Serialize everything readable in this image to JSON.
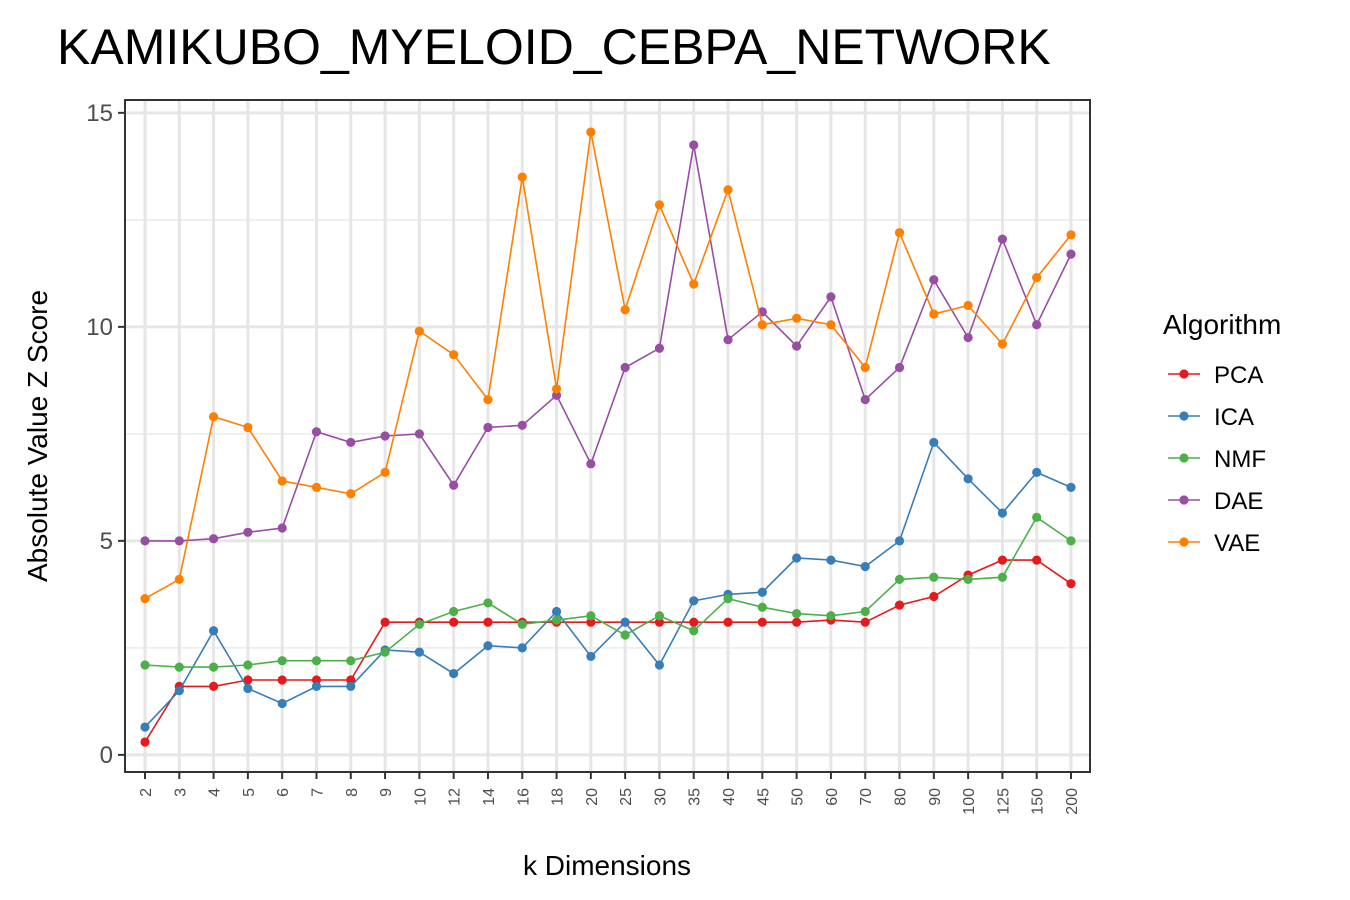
{
  "chart_data": {
    "type": "line",
    "title": "KAMIKUBO_MYELOID_CEBPA_NETWORK",
    "xlabel": "k Dimensions",
    "ylabel": "Absolute Value Z Score",
    "categories": [
      "2",
      "3",
      "4",
      "5",
      "6",
      "7",
      "8",
      "9",
      "10",
      "12",
      "14",
      "16",
      "18",
      "20",
      "25",
      "30",
      "35",
      "40",
      "45",
      "50",
      "60",
      "70",
      "80",
      "90",
      "100",
      "125",
      "150",
      "200"
    ],
    "ylim": [
      -0.4,
      15.3
    ],
    "yticks": [
      0,
      5,
      10,
      15
    ],
    "grid": true,
    "legend": {
      "title": "Algorithm",
      "position": "right"
    },
    "series": [
      {
        "name": "PCA",
        "color": "#e41a1c",
        "values": [
          0.3,
          1.6,
          1.6,
          1.75,
          1.75,
          1.75,
          1.75,
          3.1,
          3.1,
          3.1,
          3.1,
          3.1,
          3.1,
          3.1,
          3.1,
          3.1,
          3.1,
          3.1,
          3.1,
          3.1,
          3.15,
          3.1,
          3.5,
          3.7,
          4.2,
          4.55,
          4.55,
          4.0
        ]
      },
      {
        "name": "ICA",
        "color": "#377eb8",
        "values": [
          0.65,
          1.5,
          2.9,
          1.55,
          1.2,
          1.6,
          1.6,
          2.45,
          2.4,
          1.9,
          2.55,
          2.5,
          3.35,
          2.3,
          3.1,
          2.1,
          3.6,
          3.75,
          3.8,
          4.6,
          4.55,
          4.4,
          5.0,
          7.3,
          6.45,
          5.65,
          6.6,
          6.25
        ]
      },
      {
        "name": "NMF",
        "color": "#4daf4a",
        "values": [
          2.1,
          2.05,
          2.05,
          2.1,
          2.2,
          2.2,
          2.2,
          2.4,
          3.05,
          3.35,
          3.55,
          3.05,
          3.15,
          3.25,
          2.8,
          3.25,
          2.9,
          3.65,
          3.45,
          3.3,
          3.25,
          3.35,
          4.1,
          4.15,
          4.1,
          4.15,
          5.55,
          5.0
        ]
      },
      {
        "name": "DAE",
        "color": "#984ea3",
        "values": [
          5.0,
          5.0,
          5.05,
          5.2,
          5.3,
          7.55,
          7.3,
          7.45,
          7.5,
          6.3,
          7.65,
          7.7,
          8.4,
          6.8,
          9.05,
          9.5,
          14.25,
          9.7,
          10.35,
          9.55,
          10.7,
          8.3,
          9.05,
          11.1,
          9.75,
          12.05,
          10.05,
          11.7
        ]
      },
      {
        "name": "VAE",
        "color": "#ff7f00",
        "values": [
          3.65,
          4.1,
          7.9,
          7.65,
          6.4,
          6.25,
          6.1,
          6.6,
          9.9,
          9.35,
          8.3,
          13.5,
          8.55,
          14.55,
          10.4,
          12.85,
          11.0,
          13.2,
          10.05,
          10.2,
          10.05,
          9.05,
          12.2,
          10.3,
          10.5,
          9.6,
          11.15,
          12.15
        ]
      }
    ]
  }
}
